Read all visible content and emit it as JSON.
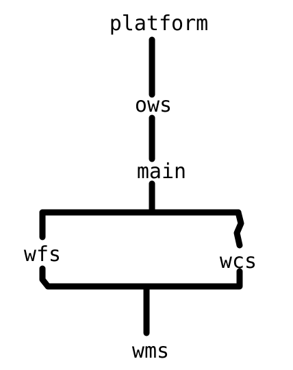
{
  "diagram": {
    "nodes": [
      {
        "id": "platform",
        "label": "platform"
      },
      {
        "id": "ows",
        "label": "ows"
      },
      {
        "id": "main",
        "label": "main"
      },
      {
        "id": "wfs",
        "label": "wfs"
      },
      {
        "id": "wcs",
        "label": "wcs"
      },
      {
        "id": "wms",
        "label": "wms"
      }
    ],
    "edges": [
      {
        "from": "platform",
        "to": "ows"
      },
      {
        "from": "ows",
        "to": "main"
      },
      {
        "from": "main",
        "to": "wfs"
      },
      {
        "from": "main",
        "to": "wcs"
      },
      {
        "from": "wfs",
        "to": "wms"
      },
      {
        "from": "wcs",
        "to": "wms"
      }
    ],
    "colors": {
      "line": "#000000",
      "text": "#000000",
      "background": "#ffffff"
    }
  }
}
